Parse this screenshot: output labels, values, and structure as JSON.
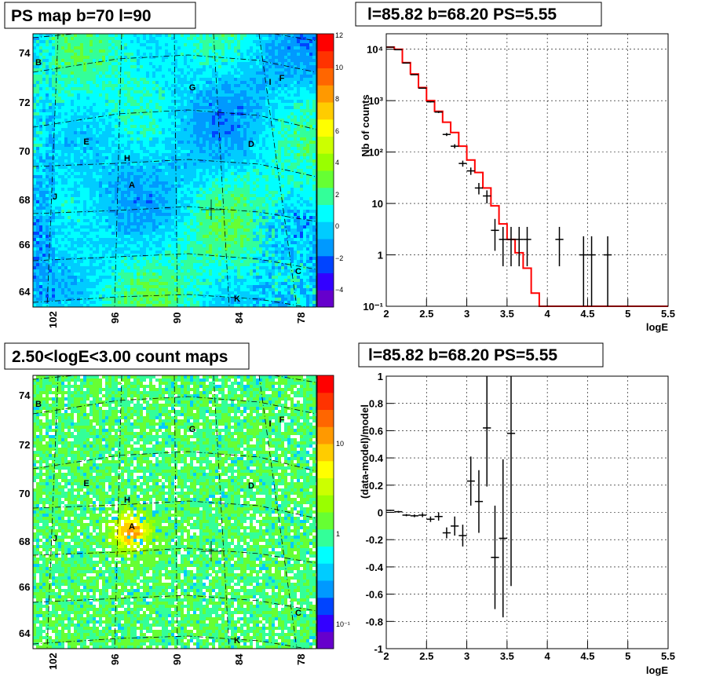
{
  "panels": {
    "top_left": {
      "title": "PS map b=70 l=90",
      "y_ticks": [
        "74",
        "72",
        "70",
        "68",
        "66",
        "64"
      ],
      "x_ticks": [
        "102",
        "96",
        "90",
        "84",
        "78"
      ],
      "colorbar_ticks": [
        "12",
        "10",
        "8",
        "6",
        "4",
        "2",
        "0",
        "−2",
        "−4"
      ],
      "sources": [
        "A",
        "B",
        "C",
        "D",
        "E",
        "F",
        "G",
        "H",
        "I",
        "J",
        "K"
      ]
    },
    "top_right": {
      "title": "l=85.82 b=68.20 PS=5.55",
      "ylabel": "Nb of counts",
      "xlabel": "logE"
    },
    "bottom_left": {
      "title": "2.50<logE<3.00 count maps",
      "y_ticks": [
        "74",
        "72",
        "70",
        "68",
        "66",
        "64"
      ],
      "x_ticks": [
        "102",
        "96",
        "90",
        "84",
        "78"
      ],
      "colorbar_ticks": [
        "10",
        "1",
        "10⁻¹"
      ],
      "sources": [
        "A",
        "B",
        "C",
        "D",
        "E",
        "F",
        "G",
        "H",
        "I",
        "J",
        "K"
      ]
    },
    "bottom_right": {
      "title": "l=85.82 b=68.20 PS=5.55",
      "ylabel": "(data-model)/model",
      "xlabel": "logE"
    }
  },
  "chart_data": [
    {
      "type": "heatmap",
      "title": "PS map b=70 l=90",
      "xlabel": "",
      "ylabel": "",
      "xlim": [
        102,
        78
      ],
      "ylim": [
        64,
        74
      ],
      "colorbar_range": [
        -5,
        12
      ],
      "marker_cross": {
        "l": 85.82,
        "b": 67.4
      },
      "sources": {
        "A": [
          94.5,
          68.5
        ],
        "B": [
          103,
          73.7
        ],
        "C": [
          78,
          65.2
        ],
        "D": [
          83,
          69.9
        ],
        "E": [
          99,
          70.1
        ],
        "F": [
          79.5,
          72.8
        ],
        "G": [
          89,
          72.4
        ],
        "H": [
          94.5,
          69.4
        ],
        "I": [
          80.5,
          72.6
        ],
        "J": [
          102,
          67.9
        ],
        "K": [
          84,
          63.6
        ]
      }
    },
    {
      "type": "line",
      "title": "l=85.82 b=68.20 PS=5.55",
      "xlabel": "logE",
      "ylabel": "Nb of counts",
      "log_y": true,
      "xlim": [
        2,
        5.5
      ],
      "ylim": [
        0.1,
        20000
      ],
      "x_ticks": [
        2,
        2.5,
        3,
        3.5,
        4,
        4.5,
        5,
        5.5
      ],
      "y_ticks": [
        {
          "v": 0.1,
          "label": "10⁻¹"
        },
        {
          "v": 1,
          "label": "1"
        },
        {
          "v": 10,
          "label": "10"
        },
        {
          "v": 100,
          "label": "10²"
        },
        {
          "v": 1000,
          "label": "10³"
        },
        {
          "v": 10000,
          "label": "10⁴"
        }
      ],
      "model": {
        "edges": [
          2.0,
          2.1,
          2.2,
          2.3,
          2.4,
          2.5,
          2.6,
          2.7,
          2.8,
          2.9,
          3.0,
          3.1,
          3.2,
          3.3,
          3.4,
          3.5,
          3.6,
          3.7,
          3.8,
          3.9,
          4.0,
          5.5
        ],
        "values": [
          11000,
          10000,
          5500,
          3300,
          1800,
          1000,
          620,
          380,
          240,
          130,
          70,
          40,
          20,
          9,
          4,
          2,
          1.1,
          0.55,
          0.18,
          0.1,
          0.1
        ]
      },
      "data": {
        "x": [
          2.05,
          2.15,
          2.25,
          2.35,
          2.45,
          2.55,
          2.65,
          2.75,
          2.85,
          2.95,
          3.05,
          3.15,
          3.25,
          3.35,
          3.45,
          3.55,
          3.65,
          3.75,
          4.15,
          4.45,
          4.55,
          4.75
        ],
        "y": [
          11000,
          9800,
          5400,
          3200,
          1750,
          950,
          600,
          220,
          130,
          60,
          43,
          20,
          14,
          3,
          2,
          2,
          2,
          2,
          2,
          1,
          1,
          1
        ],
        "ylo": [
          10900,
          9700,
          5300,
          3150,
          1710,
          920,
          575,
          205,
          118,
          52,
          36,
          15,
          10,
          1.2,
          0.6,
          0.6,
          0.6,
          0.6,
          0.6,
          0.1,
          0.1,
          0.1
        ],
        "yhi": [
          11100,
          9900,
          5500,
          3250,
          1790,
          980,
          625,
          235,
          142,
          68,
          50,
          25,
          18,
          5,
          3.5,
          3.5,
          3.5,
          3.5,
          3.5,
          2.3,
          2.3,
          2.3
        ]
      }
    },
    {
      "type": "heatmap",
      "title": "2.50<logE<3.00 count maps",
      "xlabel": "",
      "ylabel": "",
      "xlim": [
        102,
        78
      ],
      "ylim": [
        64,
        74
      ],
      "log_color": true,
      "colorbar_range": [
        0.05,
        30
      ],
      "peak": {
        "l": 94.5,
        "b": 68.5
      },
      "marker_cross": {
        "l": 85.82,
        "b": 67.4
      }
    },
    {
      "type": "scatter",
      "title": "l=85.82 b=68.20 PS=5.55",
      "xlabel": "logE",
      "ylabel": "(data-model)/model",
      "xlim": [
        2,
        5.5
      ],
      "ylim": [
        -1,
        1
      ],
      "x_ticks": [
        2,
        2.5,
        3,
        3.5,
        4,
        4.5,
        5,
        5.5
      ],
      "y_ticks": [
        -1,
        -0.8,
        -0.6,
        -0.4,
        -0.2,
        0,
        0.2,
        0.4,
        0.6,
        0.8,
        1
      ],
      "x": [
        2.05,
        2.15,
        2.25,
        2.35,
        2.45,
        2.55,
        2.65,
        2.75,
        2.85,
        2.95,
        3.05,
        3.15,
        3.25,
        3.35,
        3.45,
        3.55
      ],
      "y": [
        0.015,
        0.005,
        -0.02,
        -0.025,
        -0.02,
        -0.05,
        -0.03,
        -0.15,
        -0.1,
        -0.17,
        0.23,
        0.08,
        0.62,
        -0.33,
        -0.19,
        0.58
      ],
      "err": [
        0.004,
        0.006,
        0.008,
        0.01,
        0.015,
        0.02,
        0.03,
        0.04,
        0.07,
        0.08,
        0.18,
        0.23,
        0.43,
        0.38,
        0.58,
        1.12
      ]
    }
  ]
}
